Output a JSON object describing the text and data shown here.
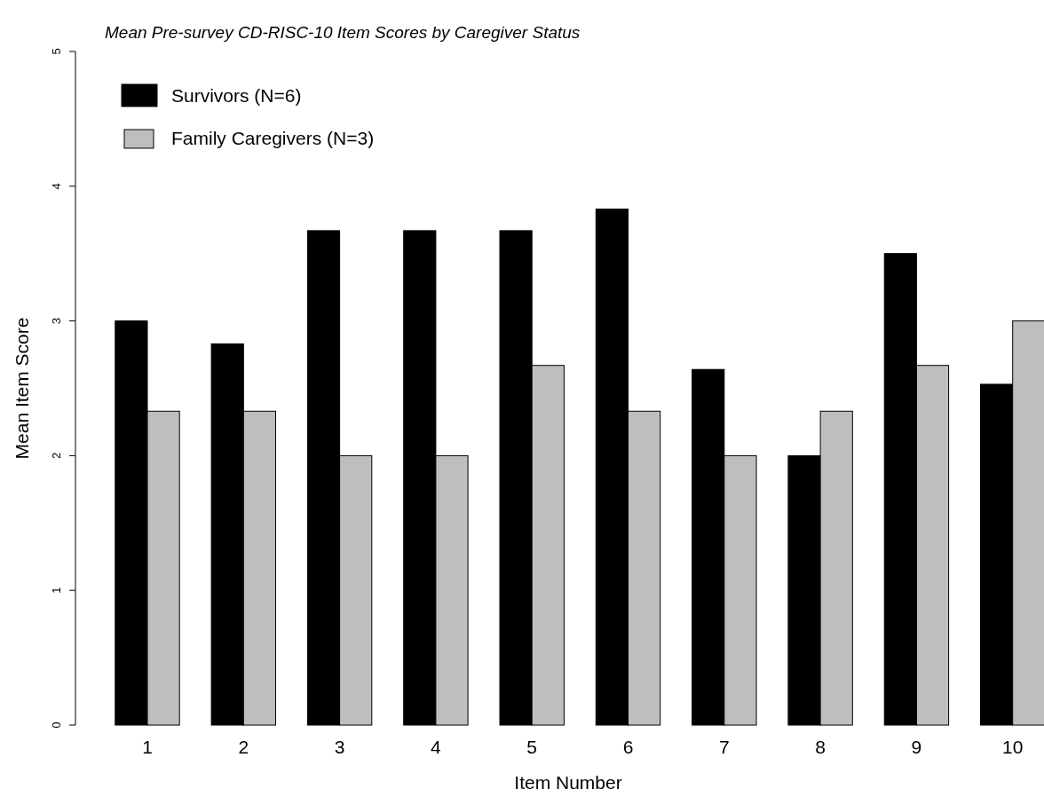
{
  "chart_data": {
    "type": "bar",
    "title": "Mean Pre-survey CD-RISC-10 Item Scores by Caregiver Status",
    "xlabel": "Item Number",
    "ylabel": "Mean Item Score",
    "categories": [
      "1",
      "2",
      "3",
      "4",
      "5",
      "6",
      "7",
      "8",
      "9",
      "10"
    ],
    "series": [
      {
        "name": "Survivors (N=6)",
        "color": "#000000",
        "values": [
          3.0,
          2.83,
          3.67,
          3.67,
          3.67,
          3.83,
          2.64,
          2.0,
          3.5,
          2.53
        ]
      },
      {
        "name": "Family Caregivers (N=3)",
        "color": "#bebebe",
        "values": [
          2.33,
          2.33,
          2.0,
          2.0,
          2.67,
          2.33,
          2.0,
          2.33,
          2.67,
          3.0
        ]
      }
    ],
    "ylim": [
      0,
      5
    ],
    "yticks": [
      0,
      1,
      2,
      3,
      4,
      5
    ],
    "legend": "top left"
  }
}
